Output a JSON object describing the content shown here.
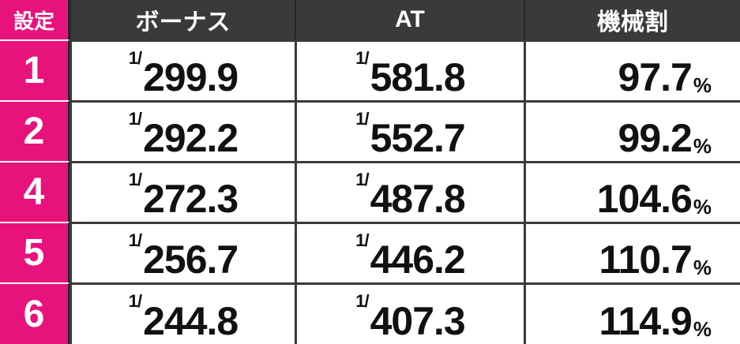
{
  "headers": {
    "setting": "設定",
    "bonus": "ボーナス",
    "at": "AT",
    "payout": "機械割"
  },
  "fraction_prefix": "1/",
  "percent_sign": "%",
  "rows": [
    {
      "setting": "1",
      "bonus": "299.9",
      "at": "581.8",
      "payout": "97.7"
    },
    {
      "setting": "2",
      "bonus": "292.2",
      "at": "552.7",
      "payout": "99.2"
    },
    {
      "setting": "4",
      "bonus": "272.3",
      "at": "487.8",
      "payout": "104.6"
    },
    {
      "setting": "5",
      "bonus": "256.7",
      "at": "446.2",
      "payout": "110.7"
    },
    {
      "setting": "6",
      "bonus": "244.8",
      "at": "407.3",
      "payout": "114.9"
    }
  ],
  "colors": {
    "header_bg": "#3a3a3a",
    "setting_bg": "#e8127c",
    "text_dark": "#111111",
    "text_light": "#ffffff"
  }
}
